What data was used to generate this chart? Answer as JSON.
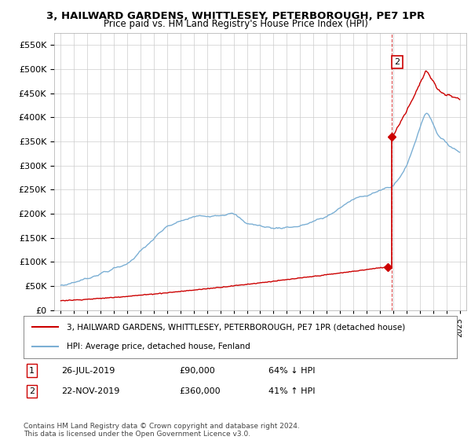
{
  "title": "3, HAILWARD GARDENS, WHITTLESEY, PETERBOROUGH, PE7 1PR",
  "subtitle": "Price paid vs. HM Land Registry's House Price Index (HPI)",
  "ylim": [
    0,
    575000
  ],
  "yticks": [
    0,
    50000,
    100000,
    150000,
    200000,
    250000,
    300000,
    350000,
    400000,
    450000,
    500000,
    550000
  ],
  "xlim": [
    1994.5,
    2025.5
  ],
  "sale1_date": 2019.57,
  "sale1_price": 90000,
  "sale2_date": 2019.9,
  "sale2_price": 360000,
  "hpi_color": "#7bafd4",
  "sale_color": "#cc0000",
  "legend_sale_label": "3, HAILWARD GARDENS, WHITTLESEY, PETERBOROUGH, PE7 1PR (detached house)",
  "legend_hpi_label": "HPI: Average price, detached house, Fenland",
  "copyright": "Contains HM Land Registry data © Crown copyright and database right 2024.\nThis data is licensed under the Open Government Licence v3.0.",
  "background_color": "#ffffff",
  "grid_color": "#cccccc",
  "title_fontsize": 9.5,
  "subtitle_fontsize": 8.5
}
